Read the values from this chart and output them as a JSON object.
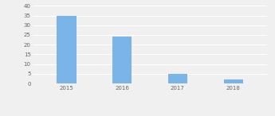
{
  "categories": [
    "2015",
    "2016",
    "2017",
    "2018"
  ],
  "values": [
    35,
    24,
    5,
    2
  ],
  "bar_color": "#7ab4e8",
  "ylim": [
    0,
    40
  ],
  "yticks": [
    0,
    5,
    10,
    15,
    20,
    25,
    30,
    35,
    40
  ],
  "background_color": "#f0f0f0",
  "plot_bg_color": "#f0f0f0",
  "grid_color": "#ffffff",
  "tick_fontsize": 5.0,
  "legend_fontsize": 4.8,
  "bar_width": 0.35
}
